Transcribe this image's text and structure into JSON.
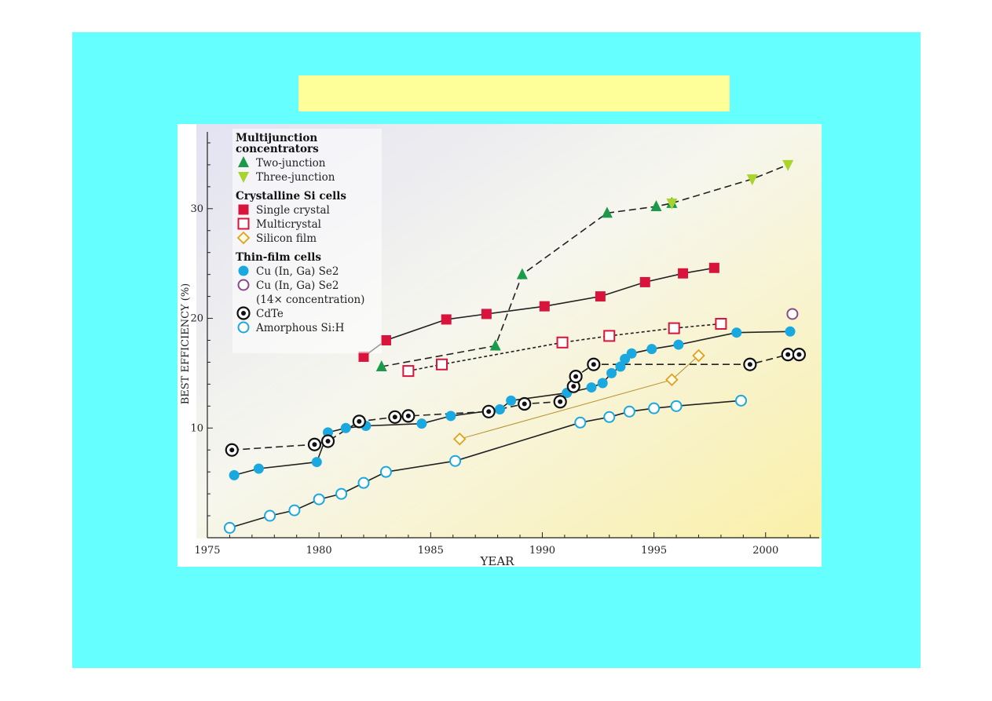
{
  "slide": {
    "background": "#66ffff",
    "title_box_color": "#ffff99"
  },
  "chart_data": {
    "type": "scatter",
    "xlabel": "YEAR",
    "ylabel": "BEST  EFFICIENCY (%)",
    "xlim": [
      1975,
      2002
    ],
    "ylim": [
      0,
      37
    ],
    "xticks": [
      1975,
      1980,
      1985,
      1990,
      1995,
      2000
    ],
    "yticks": [
      10,
      20,
      30
    ],
    "legend": {
      "placement": "top-left",
      "groups": [
        {
          "heading_lines": [
            "Multijunction",
            "concentrators"
          ],
          "entries": [
            "Two-junction",
            "Three-junction"
          ]
        },
        {
          "heading_lines": [
            "Crystalline Si cells"
          ],
          "entries": [
            "Single crystal",
            "Multicrystal",
            "Silicon film"
          ]
        },
        {
          "heading_lines": [
            "Thin-film cells"
          ],
          "entries": [
            "Cu (In, Ga) Se2",
            "Cu (In, Ga) Se2 (14× concentration)",
            "CdTe",
            "Amorphous Si:H"
          ]
        }
      ]
    },
    "series": [
      {
        "name": "Two-junction",
        "marker": "triangle-up",
        "color": "#1a9a4a",
        "line": "dashed",
        "x": [
          1982.8,
          1987.9,
          1989.1,
          1992.9,
          1995.1,
          1995.8
        ],
        "y": [
          15.6,
          17.5,
          24.0,
          29.6,
          30.2,
          30.5
        ]
      },
      {
        "name": "Three-junction",
        "marker": "triangle-down",
        "color": "#a8d42c",
        "line": "dashed",
        "x": [
          1995.8,
          1999.4,
          2001.0
        ],
        "y": [
          30.5,
          32.7,
          34.0
        ]
      },
      {
        "name": "Single crystal",
        "marker": "square-filled",
        "color": "#d8143c",
        "line": "solid",
        "x": [
          1982.0,
          1983.0,
          1985.7,
          1987.5,
          1990.1,
          1992.6,
          1994.6,
          1996.3,
          1997.7
        ],
        "y": [
          16.5,
          18.0,
          19.9,
          20.4,
          21.1,
          22.0,
          23.3,
          24.1,
          24.6
        ]
      },
      {
        "name": "Multicrystal",
        "marker": "square-open",
        "color": "#d8143c",
        "line": "dotted",
        "x": [
          1984.0,
          1985.5,
          1990.9,
          1993.0,
          1995.9,
          1998.0
        ],
        "y": [
          15.2,
          15.8,
          17.8,
          18.4,
          19.1,
          19.5
        ]
      },
      {
        "name": "Silicon film",
        "marker": "diamond-open",
        "color": "#e0a020",
        "line": "thin-solid",
        "x": [
          1986.3,
          1995.8,
          1997.0
        ],
        "y": [
          9.0,
          14.4,
          16.6
        ]
      },
      {
        "name": "Cu (In, Ga) Se2",
        "marker": "circle-filled",
        "color": "#1aa8e0",
        "line": "solid",
        "x": [
          1976.2,
          1977.3,
          1979.9,
          1980.4,
          1981.2,
          1982.1,
          1984.6,
          1985.9,
          1988.1,
          1988.6,
          1991.1,
          1992.2,
          1992.7,
          1993.1,
          1993.5,
          1993.7,
          1994.0,
          1994.9,
          1996.1,
          1998.7,
          2001.1
        ],
        "y": [
          5.7,
          6.3,
          6.9,
          9.6,
          10.0,
          10.2,
          10.4,
          11.1,
          11.7,
          12.5,
          13.2,
          13.7,
          14.1,
          15.0,
          15.6,
          16.3,
          16.8,
          17.2,
          17.6,
          18.7,
          18.8
        ]
      },
      {
        "name": "Cu (In, Ga) Se2 (14× concentration)",
        "marker": "circle-open",
        "color": "#8a4a8a",
        "line": "none",
        "x": [
          2001.2
        ],
        "y": [
          20.4
        ]
      },
      {
        "name": "CdTe",
        "marker": "circle-dot",
        "color": "#111111",
        "line": "dashed",
        "x": [
          1976.1,
          1979.8,
          1980.4,
          1981.8,
          1983.4,
          1984.0,
          1987.6,
          1989.2,
          1990.8,
          1991.4,
          1991.5,
          1992.3,
          1999.3,
          2001.0,
          2001.5
        ],
        "y": [
          8.0,
          8.5,
          8.8,
          10.6,
          11.0,
          11.1,
          11.5,
          12.2,
          12.4,
          13.8,
          14.7,
          15.8,
          15.8,
          16.7,
          16.7
        ]
      },
      {
        "name": "Amorphous Si:H",
        "marker": "circle-open",
        "color": "#1aa8e0",
        "line": "solid",
        "x": [
          1976.0,
          1977.8,
          1978.9,
          1980.0,
          1981.0,
          1982.0,
          1983.0,
          1986.1,
          1991.7,
          1993.0,
          1993.9,
          1995.0,
          1996.0,
          1998.9
        ],
        "y": [
          0.9,
          2.0,
          2.5,
          3.5,
          4.0,
          5.0,
          6.0,
          7.0,
          10.5,
          11.0,
          11.5,
          11.8,
          12.0,
          12.5
        ]
      }
    ]
  }
}
